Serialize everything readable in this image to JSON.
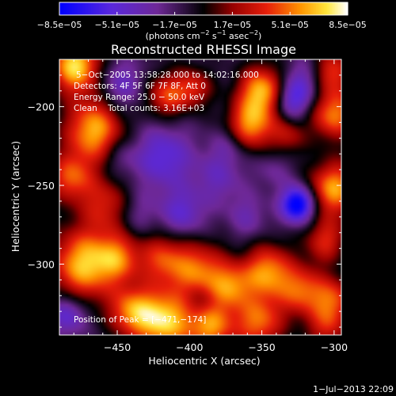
{
  "chart_data": {
    "type": "heatmap",
    "title": "Reconstructed RHESSI Image",
    "xlabel": "Heliocentric X (arcsec)",
    "ylabel": "Heliocentric Y (arcsec)",
    "xlim": [
      -490,
      -295
    ],
    "ylim": [
      -345,
      -170
    ],
    "xticks": [
      {
        "value": -450,
        "label": "−450"
      },
      {
        "value": -400,
        "label": "−400"
      },
      {
        "value": -350,
        "label": "−350"
      },
      {
        "value": -300,
        "label": "−300"
      }
    ],
    "yticks": [
      {
        "value": -200,
        "label": "−200"
      },
      {
        "value": -250,
        "label": "−250"
      },
      {
        "value": -300,
        "label": "−300"
      }
    ],
    "colorbar": {
      "min": -8.5e-05,
      "max": 8.5e-05,
      "ticks": [
        {
          "value": -8.5e-05,
          "label": "−8.5e−05"
        },
        {
          "value": -5.1e-05,
          "label": "−5.1e−05"
        },
        {
          "value": -1.7e-05,
          "label": "−1.7e−05"
        },
        {
          "value": 1.7e-05,
          "label": "1.7e−05"
        },
        {
          "value": 5.1e-05,
          "label": "5.1e−05"
        },
        {
          "value": 8.5e-05,
          "label": "8.5e−05"
        }
      ],
      "unit_base": "(photons cm",
      "unit_sup1": "−2",
      "unit_mid": " s",
      "unit_sup2": "−1",
      "unit_end": " asec",
      "unit_sup3": "−2",
      "unit_close": ")"
    },
    "annotations": [
      "5−Oct−2005 13:58:28.000 to 14:02:16.000",
      "Detectors: 4F 5F 6F 7F 8F, Att 0",
      "Energy Range: 25.0 − 50.0 keV",
      "Clean    Total counts: 3.16E+03"
    ],
    "peak_label": "Position of Peak = [−471,−174]",
    "peak_position": [
      -471,
      -174
    ],
    "blobs": [
      {
        "x": -479,
        "y": -174,
        "v": 8.5e-05,
        "s": 12
      },
      {
        "x": -466,
        "y": -215,
        "v": 7.5e-05,
        "s": 14
      },
      {
        "x": -482,
        "y": -245,
        "v": 5.5e-05,
        "s": 11
      },
      {
        "x": -458,
        "y": -262,
        "v": 4.2e-05,
        "s": 12
      },
      {
        "x": -473,
        "y": -300,
        "v": 7.8e-05,
        "s": 16
      },
      {
        "x": -449,
        "y": -296,
        "v": 4.8e-05,
        "s": 11
      },
      {
        "x": -418,
        "y": -297,
        "v": 5e-05,
        "s": 12
      },
      {
        "x": -393,
        "y": -305,
        "v": 6e-05,
        "s": 13
      },
      {
        "x": -371,
        "y": -314,
        "v": 5.2e-05,
        "s": 10
      },
      {
        "x": -346,
        "y": -305,
        "v": 6.8e-05,
        "s": 12
      },
      {
        "x": -322,
        "y": -317,
        "v": 5.5e-05,
        "s": 11
      },
      {
        "x": -300,
        "y": -322,
        "v": 4.8e-05,
        "s": 10
      },
      {
        "x": -418,
        "y": -336,
        "v": 8.2e-05,
        "s": 13
      },
      {
        "x": -386,
        "y": -339,
        "v": 6.8e-05,
        "s": 12
      },
      {
        "x": -440,
        "y": -330,
        "v": 6e-05,
        "s": 11
      },
      {
        "x": -352,
        "y": -337,
        "v": 6e-05,
        "s": 12
      },
      {
        "x": -305,
        "y": -340,
        "v": 4e-05,
        "s": 10
      },
      {
        "x": -416,
        "y": -193,
        "v": 5.2e-05,
        "s": 10
      },
      {
        "x": -397,
        "y": -188,
        "v": 4.2e-05,
        "s": 9
      },
      {
        "x": -350,
        "y": -190,
        "v": 7.5e-05,
        "s": 11
      },
      {
        "x": -358,
        "y": -212,
        "v": 6.8e-05,
        "s": 11
      },
      {
        "x": -332,
        "y": -218,
        "v": 3.5e-05,
        "s": 9
      },
      {
        "x": -302,
        "y": -178,
        "v": 5.5e-05,
        "s": 10
      },
      {
        "x": -300,
        "y": -205,
        "v": 6.5e-05,
        "s": 11
      },
      {
        "x": -300,
        "y": -252,
        "v": 7.2e-05,
        "s": 12
      },
      {
        "x": -306,
        "y": -285,
        "v": 4.5e-05,
        "s": 10
      },
      {
        "x": -325,
        "y": -262,
        "v": -8.5e-05,
        "s": 8
      },
      {
        "x": -329,
        "y": -196,
        "v": -4.6e-05,
        "s": 9
      },
      {
        "x": -418,
        "y": -232,
        "v": -4.2e-05,
        "s": 14
      },
      {
        "x": -405,
        "y": -268,
        "v": -3.6e-05,
        "s": 11
      },
      {
        "x": -447,
        "y": -186,
        "v": -3.2e-05,
        "s": 11
      },
      {
        "x": -318,
        "y": -182,
        "v": -3e-05,
        "s": 10
      },
      {
        "x": -380,
        "y": -245,
        "v": -2.6e-05,
        "s": 12
      },
      {
        "x": -360,
        "y": -270,
        "v": -2.2e-05,
        "s": 10
      },
      {
        "x": -372,
        "y": -224,
        "v": -2e-05,
        "s": 9
      },
      {
        "x": -484,
        "y": -332,
        "v": -4.2e-05,
        "s": 9
      },
      {
        "x": -436,
        "y": -268,
        "v": -1.8e-05,
        "s": 10
      },
      {
        "x": -448,
        "y": -232,
        "v": -1.8e-05,
        "s": 9
      },
      {
        "x": -392,
        "y": -324,
        "v": -2.2e-05,
        "s": 8
      },
      {
        "x": -342,
        "y": -240,
        "v": -1.6e-05,
        "s": 9
      }
    ]
  },
  "footer": {
    "date": "1−Jul−2013 22:09"
  }
}
